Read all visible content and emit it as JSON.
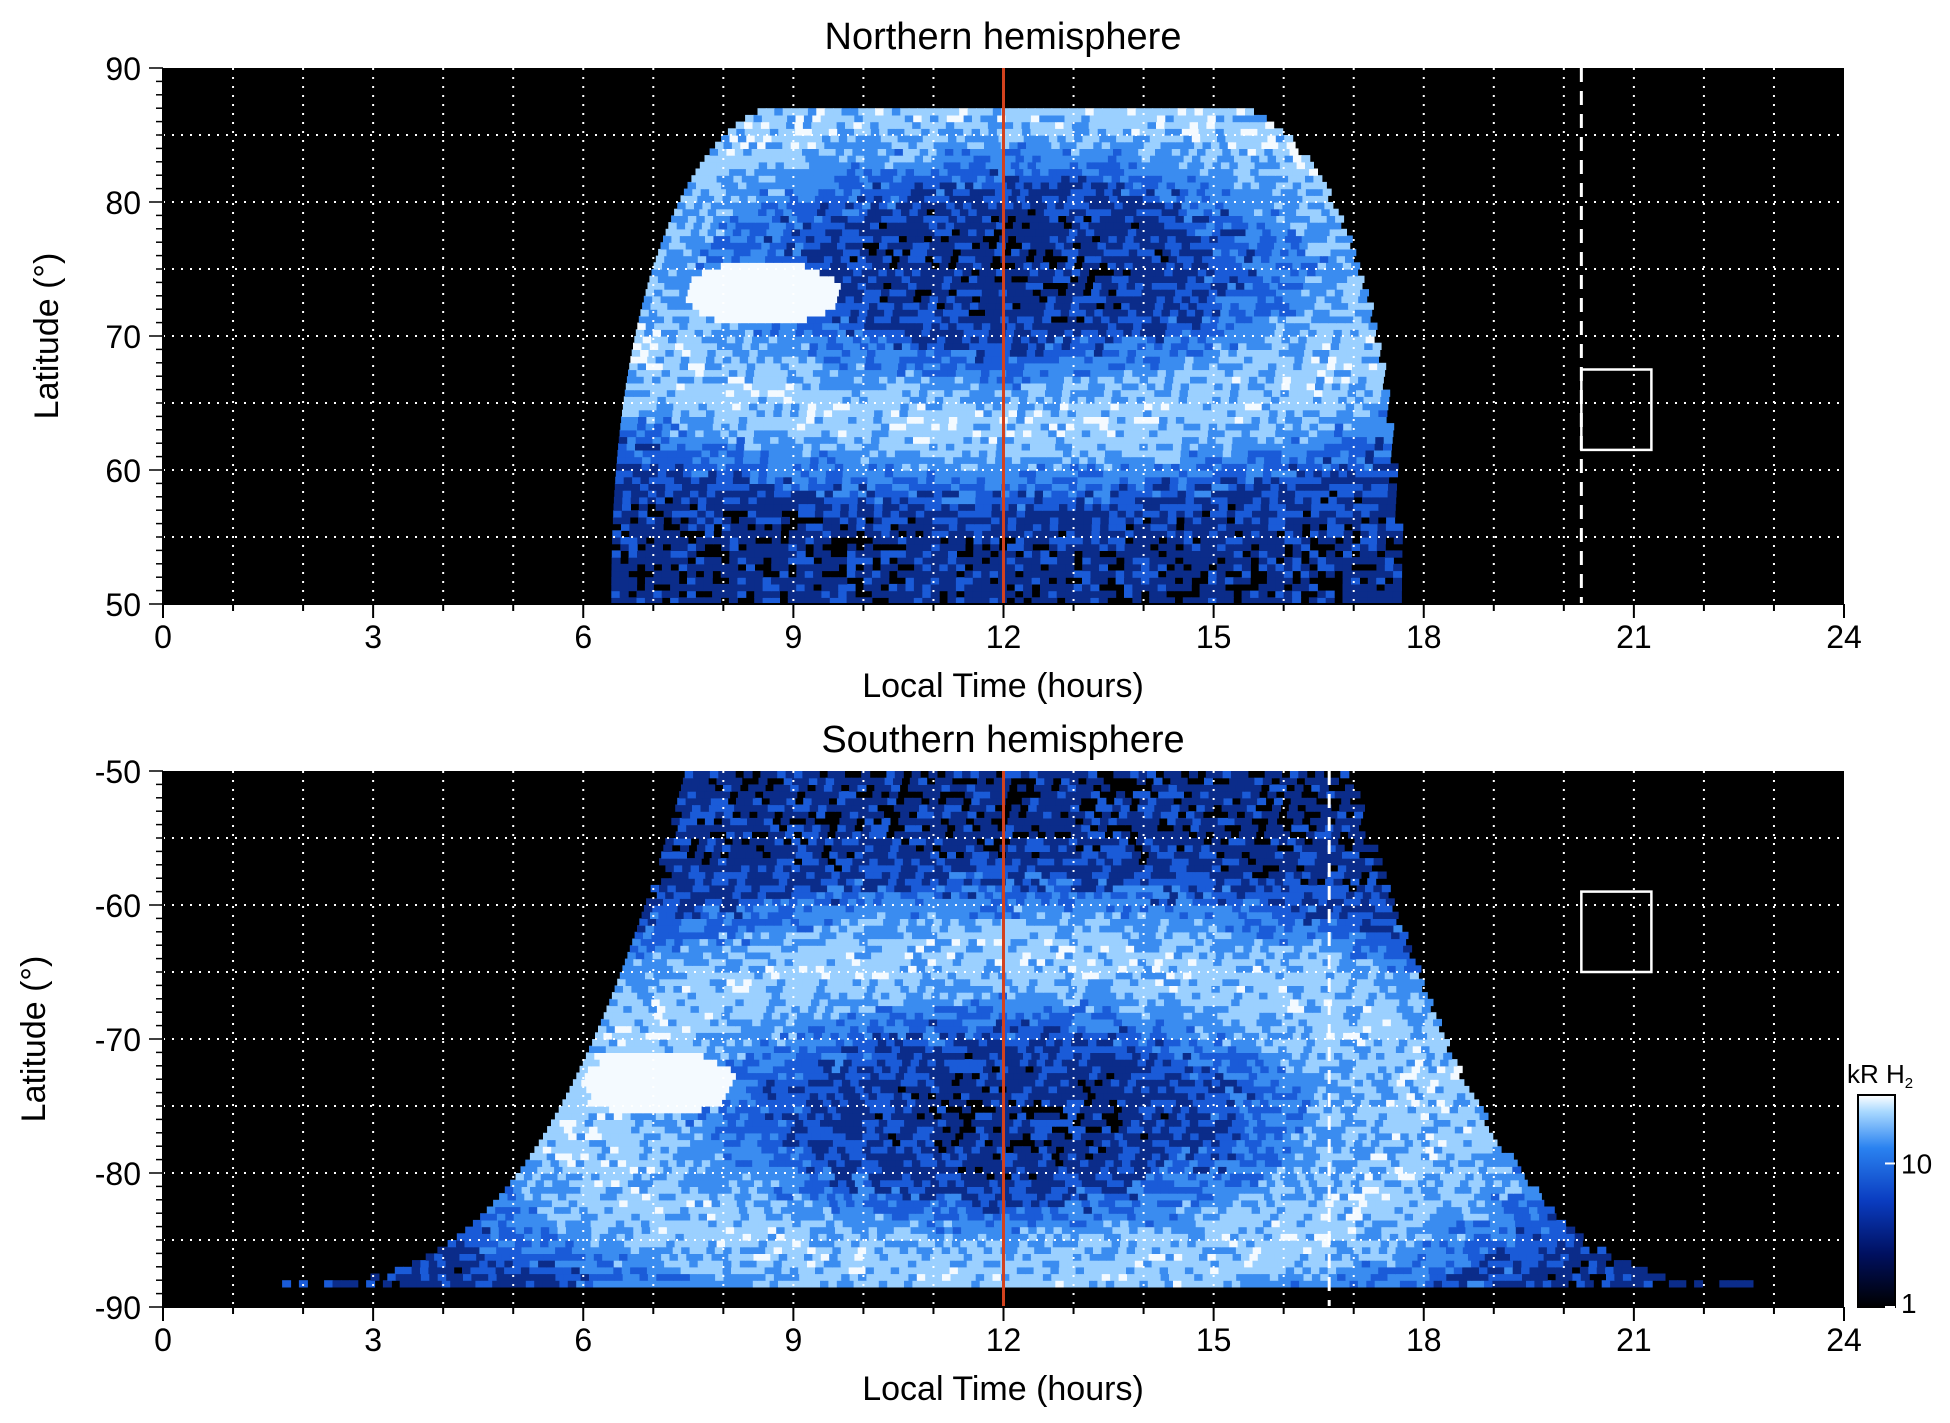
{
  "chart_data": [
    {
      "type": "heatmap",
      "title": "Northern hemisphere",
      "xlabel": "Local Time (hours)",
      "ylabel": "Latitude (°)",
      "xlim": [
        0,
        24
      ],
      "ylim": [
        50,
        90
      ],
      "x_ticks": [
        0,
        3,
        6,
        9,
        12,
        15,
        18,
        21,
        24
      ],
      "y_ticks": [
        50,
        60,
        70,
        80,
        90
      ],
      "grid": true,
      "emission_extent": {
        "lt_min": 6.4,
        "lt_max": 17.6,
        "lat_min": 50,
        "lat_max": 87
      },
      "oval_center_lat": 75,
      "bright_spot": {
        "lt": 8.5,
        "lat": 73
      },
      "noon_line_lt": 12,
      "dashed_line_lt": 20.25,
      "box": {
        "lt": [
          20.25,
          21.25
        ],
        "lat": [
          61.5,
          67.5
        ]
      }
    },
    {
      "type": "heatmap",
      "title": "Southern hemisphere",
      "xlabel": "Local Time (hours)",
      "ylabel": "Latitude (°)",
      "xlim": [
        0,
        24
      ],
      "ylim": [
        -90,
        -50
      ],
      "x_ticks": [
        0,
        3,
        6,
        9,
        12,
        15,
        18,
        21,
        24
      ],
      "y_ticks": [
        -90,
        -80,
        -70,
        -60,
        -50
      ],
      "grid": true,
      "emission_extent": {
        "lt_min": 1.7,
        "lt_max": 22.7,
        "lat_min": -88.5,
        "lat_max": -50
      },
      "oval_center_lat": -76,
      "bright_spot": {
        "lt": 7.0,
        "lat": -73.5
      },
      "noon_line_lt": 12,
      "dashed_line_lt": 16.65,
      "box": {
        "lt": [
          20.25,
          21.25
        ],
        "lat": [
          -65,
          -59
        ]
      }
    }
  ],
  "colorbar": {
    "label_main": "kR H",
    "label_sub": "2",
    "tick_labels": [
      "10",
      "1"
    ],
    "tick_values": [
      10,
      1
    ],
    "range": [
      1,
      30
    ],
    "scale": "log",
    "colors": [
      "#000000",
      "#001060",
      "#0a3cc0",
      "#2a82f0",
      "#a8d8ff",
      "#ffffff"
    ]
  },
  "colors": {
    "noon_line": "#d2421e",
    "grid": "#ffffff",
    "background": "#000000"
  }
}
